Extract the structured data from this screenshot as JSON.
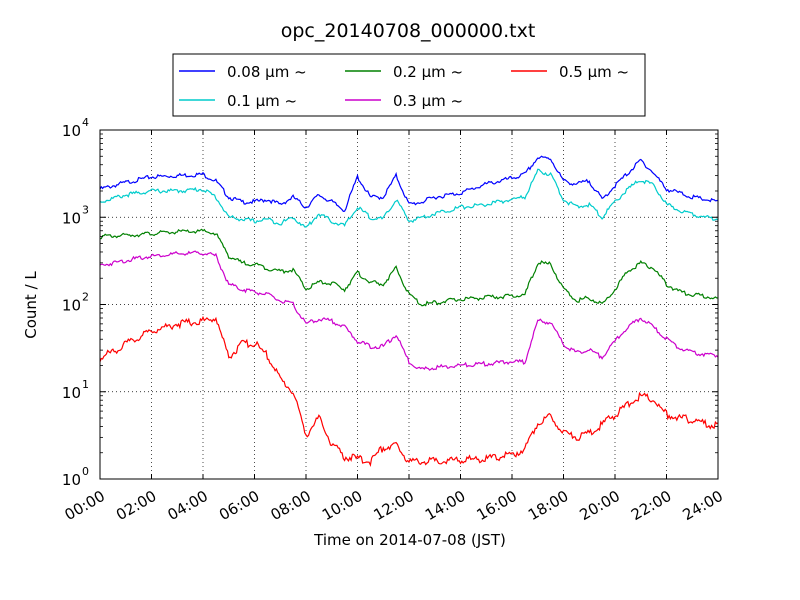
{
  "chart_data": {
    "type": "line",
    "title": "opc_20140708_000000.txt",
    "xlabel": "Time on 2014-07-08 (JST)",
    "ylabel": "Count / L",
    "xlim": [
      "2014-07-08 00:00",
      "2014-07-09 00:00"
    ],
    "xticks": [
      "00:00",
      "02:00",
      "04:00",
      "06:00",
      "08:00",
      "10:00",
      "12:00",
      "14:00",
      "16:00",
      "18:00",
      "20:00",
      "22:00",
      "24:00"
    ],
    "yscale": "log",
    "ylim": [
      1,
      10000
    ],
    "yticks": [
      {
        "base": "10",
        "exp": "0"
      },
      {
        "base": "10",
        "exp": "1"
      },
      {
        "base": "10",
        "exp": "2"
      },
      {
        "base": "10",
        "exp": "3"
      },
      {
        "base": "10",
        "exp": "4"
      }
    ],
    "grid": true,
    "legend_placement": "top-center, above plot",
    "x_hours": [
      0,
      1,
      2,
      3,
      4,
      4.5,
      5,
      5.5,
      6,
      6.5,
      7,
      7.5,
      8,
      8.5,
      9,
      9.5,
      10,
      10.5,
      11,
      11.5,
      12,
      12.5,
      13,
      14,
      15,
      16,
      16.5,
      17,
      17.5,
      18,
      18.5,
      19,
      19.5,
      20,
      20.5,
      21,
      21.5,
      22,
      22.5,
      23,
      23.5,
      24
    ],
    "series": [
      {
        "name": "0.08 µm ~",
        "color": "#0000ff",
        "values": [
          2100,
          2500,
          2900,
          3000,
          3100,
          2600,
          1700,
          1500,
          1500,
          1600,
          1400,
          1700,
          1300,
          1800,
          1500,
          1200,
          2900,
          1700,
          1700,
          3000,
          1400,
          1500,
          1700,
          1900,
          2400,
          2800,
          3100,
          4800,
          4700,
          2600,
          2400,
          2600,
          1600,
          2300,
          3200,
          4500,
          3200,
          2100,
          1900,
          1700,
          1600,
          1500
        ]
      },
      {
        "name": "0.1 µm ~",
        "color": "#00cccc",
        "values": [
          1500,
          1800,
          2000,
          2000,
          2100,
          1700,
          1000,
          950,
          900,
          950,
          850,
          1000,
          750,
          1100,
          900,
          800,
          1300,
          1000,
          950,
          1600,
          900,
          1000,
          1100,
          1300,
          1400,
          1600,
          1700,
          3400,
          3100,
          1600,
          1300,
          1400,
          1000,
          1500,
          2100,
          2700,
          2300,
          1400,
          1200,
          1100,
          1000,
          950
        ]
      },
      {
        "name": "0.2 µm ~",
        "color": "#008000",
        "values": [
          600,
          620,
          650,
          680,
          690,
          650,
          360,
          300,
          290,
          260,
          240,
          250,
          150,
          180,
          175,
          150,
          230,
          180,
          170,
          260,
          130,
          100,
          105,
          115,
          120,
          125,
          130,
          300,
          290,
          150,
          110,
          120,
          100,
          150,
          240,
          300,
          260,
          170,
          140,
          130,
          125,
          115
        ]
      },
      {
        "name": "0.3 µm ~",
        "color": "#cc00cc",
        "values": [
          280,
          320,
          360,
          380,
          390,
          360,
          170,
          150,
          140,
          130,
          110,
          100,
          60,
          68,
          65,
          55,
          38,
          33,
          33,
          45,
          22,
          18,
          19,
          20,
          21,
          22,
          22,
          65,
          62,
          35,
          28,
          30,
          25,
          38,
          55,
          70,
          55,
          40,
          32,
          28,
          27,
          26
        ]
      },
      {
        "name": "0.5 µm ~",
        "color": "#ff0000",
        "values": [
          24,
          35,
          50,
          60,
          65,
          70,
          25,
          35,
          36,
          26,
          14,
          10,
          3.2,
          5,
          2.5,
          1.8,
          1.7,
          1.6,
          2.3,
          2.4,
          1.6,
          1.6,
          1.6,
          1.65,
          1.7,
          1.9,
          2.2,
          4.5,
          5.2,
          3.5,
          3,
          3.3,
          4.2,
          5.5,
          7,
          9,
          8,
          5.5,
          5,
          4.8,
          4.3,
          4
        ]
      }
    ]
  }
}
